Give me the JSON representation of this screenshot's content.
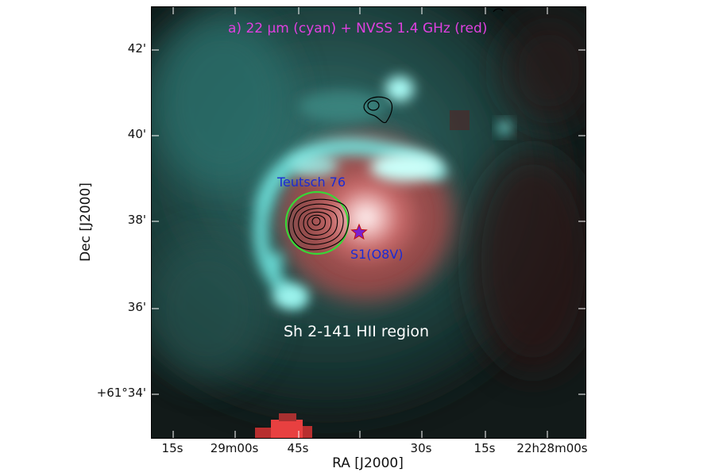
{
  "figure": {
    "panel_title": "a) 22 μm (cyan) + NVSS 1.4 GHz (red)",
    "region_label": "Sh 2-141 HII region",
    "source_label": "Teutsch 76",
    "star_label": "S1(O8V)",
    "x_axis_title": "RA [J2000]",
    "y_axis_title": "Dec [J2000]",
    "x_ticks": [
      "15s",
      "29m00s",
      "45s",
      "30s",
      "15s",
      "22h28m00s"
    ],
    "y_ticks": [
      "42'",
      "40'",
      "38'",
      "36'",
      "+61°34'"
    ],
    "colors": {
      "panel_title": "#e040e0",
      "source_label": "#1a2bd6",
      "star_label": "#1a2bd6",
      "region_label": "#ffffff",
      "circle": "#36d936",
      "star": "#7a1fd0",
      "contours": "#000000"
    }
  }
}
